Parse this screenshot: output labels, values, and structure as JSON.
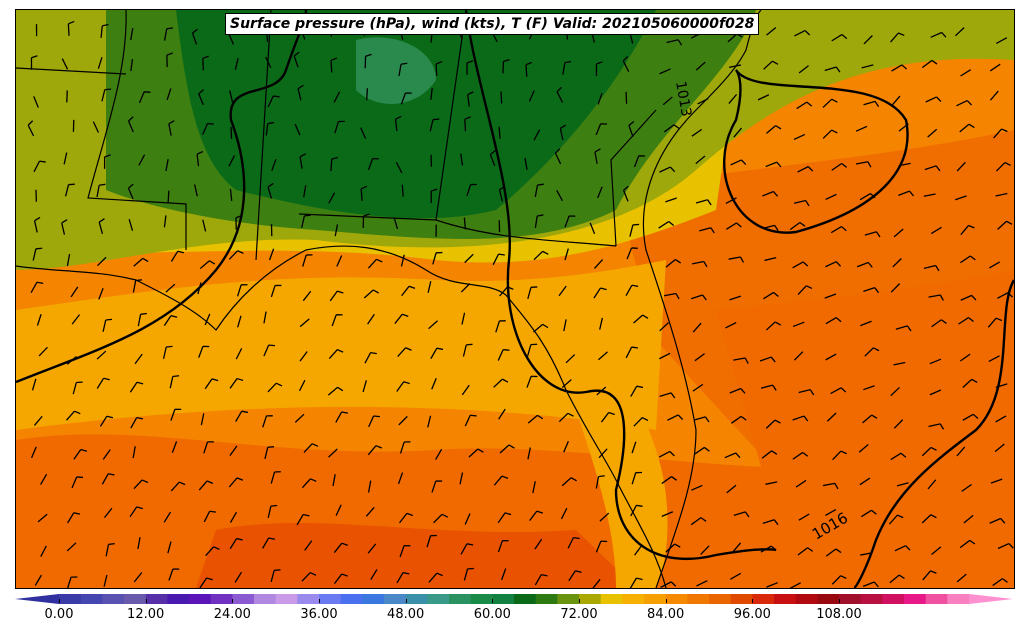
{
  "title": "Surface pressure (hPa), wind (kts), T (F) Valid: 202105060000f028",
  "isobar_labels": [
    "1013",
    "1016"
  ],
  "colors": {
    "dark_green": "#0a6a18",
    "green": "#3e7f12",
    "olive": "#9ea80a",
    "yellow": "#e8c200",
    "light_orange": "#f5a700",
    "orange": "#f58400",
    "dark_orange": "#f06a00",
    "red_orange": "#e85200",
    "teal": "#2a8a4e"
  },
  "colorbar": {
    "ticks": [
      "0.00",
      "12.00",
      "24.00",
      "36.00",
      "48.00",
      "60.00",
      "72.00",
      "84.00",
      "96.00",
      "108.00"
    ],
    "colors": [
      "#3b3ba8",
      "#4646b0",
      "#5a52b0",
      "#6a5aac",
      "#5530a8",
      "#4a1ab0",
      "#5a14b8",
      "#7030c0",
      "#8c5ad0",
      "#b088e0",
      "#c89ae8",
      "#9a8aee",
      "#6a7af0",
      "#4a70f0",
      "#3a78e0",
      "#4a88c8",
      "#3a90a8",
      "#3a9a8a",
      "#2a9260",
      "#1a8a48",
      "#128040",
      "#0a6a18",
      "#2e7a12",
      "#6a9410",
      "#a8a800",
      "#e8c200",
      "#f5b000",
      "#f5a000",
      "#f58a00",
      "#f07800",
      "#ea6400",
      "#e04a00",
      "#d82a0a",
      "#c81010",
      "#b00a10",
      "#980a10",
      "#a0102a",
      "#b81040",
      "#d01060",
      "#e81888",
      "#f050a0",
      "#f880c0"
    ],
    "extend_low": "#3030a0",
    "extend_high": "#ff90d0"
  }
}
